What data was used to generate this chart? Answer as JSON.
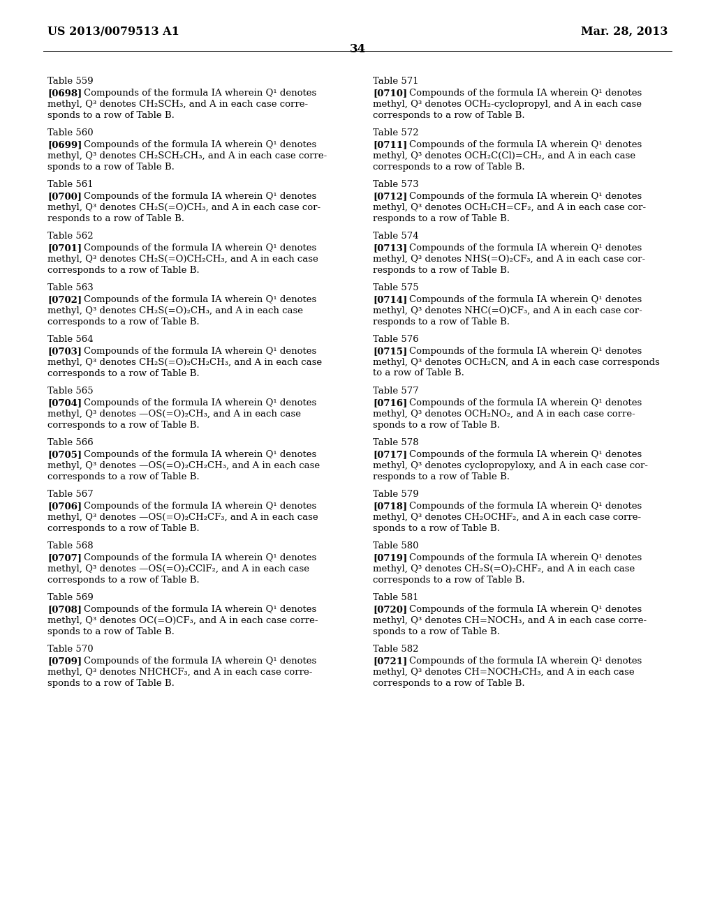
{
  "page_number": "34",
  "patent_number": "US 2013/0079513 A1",
  "date": "Mar. 28, 2013",
  "background_color": "#ffffff",
  "text_color": "#000000",
  "left_column": [
    {
      "table": "Table 559",
      "ref": "[0698]",
      "text": "Compounds of the formula IA wherein Q1 denotes methyl, Q3 denotes CH2SCH3, and A in each case corresponds to a row of Table B."
    },
    {
      "table": "Table 560",
      "ref": "[0699]",
      "text": "Compounds of the formula IA wherein Q1 denotes methyl, Q3 denotes CH2SCH2CH3, and A in each case corresponds to a row of Table B."
    },
    {
      "table": "Table 561",
      "ref": "[0700]",
      "text": "Compounds of the formula IA wherein Q1 denotes methyl, Q3 denotes CH2S(=O)CH3, and A in each case corresponds to a row of Table B."
    },
    {
      "table": "Table 562",
      "ref": "[0701]",
      "text": "Compounds of the formula IA wherein Q1 denotes methyl, Q3 denotes CH2S(=O)CH2CH3, and A in each case corresponds to a row of Table B."
    },
    {
      "table": "Table 563",
      "ref": "[0702]",
      "text": "Compounds of the formula IA wherein Q1 denotes methyl, Q3 denotes CH2S(=O)2CH3, and A in each case corresponds to a row of Table B."
    },
    {
      "table": "Table 564",
      "ref": "[0703]",
      "text": "Compounds of the formula IA wherein Q1 denotes methyl, Q3 denotes CH2S(=O)2CH2CH3, and A in each case corresponds to a row of Table B."
    },
    {
      "table": "Table 565",
      "ref": "[0704]",
      "text": "Compounds of the formula IA wherein Q1 denotes methyl, Q3 denotes —OS(=O)2CH3, and A in each case corresponds to a row of Table B."
    },
    {
      "table": "Table 566",
      "ref": "[0705]",
      "text": "Compounds of the formula IA wherein Q1 denotes methyl, Q3 denotes —OS(=O)2CH2CH3, and A in each case corresponds to a row of Table B."
    },
    {
      "table": "Table 567",
      "ref": "[0706]",
      "text": "Compounds of the formula IA wherein Q1 denotes methyl, Q3 denotes —OS(=O)2CH2CF3, and A in each case corresponds to a row of Table B."
    },
    {
      "table": "Table 568",
      "ref": "[0707]",
      "text": "Compounds of the formula IA wherein Q1 denotes methyl, Q3 denotes —OS(=O)2CClF2, and A in each case corresponds to a row of Table B."
    },
    {
      "table": "Table 569",
      "ref": "[0708]",
      "text": "Compounds of the formula IA wherein Q1 denotes methyl, Q3 denotes OC(=O)CF3, and A in each case corresponds to a row of Table B."
    },
    {
      "table": "Table 570",
      "ref": "[0709]",
      "text": "Compounds of the formula IA wherein Q1 denotes methyl, Q3 denotes NHCHCF3, and A in each case corresponds to a row of Table B."
    }
  ],
  "right_column": [
    {
      "table": "Table 571",
      "ref": "[0710]",
      "text": "Compounds of the formula IA wherein Q1 denotes methyl, Q3 denotes OCH2-cyclopropyl, and A in each case corresponds to a row of Table B."
    },
    {
      "table": "Table 572",
      "ref": "[0711]",
      "text": "Compounds of the formula IA wherein Q1 denotes methyl, Q3 denotes OCH2C(Cl)=CH2, and A in each case corresponds to a row of Table B."
    },
    {
      "table": "Table 573",
      "ref": "[0712]",
      "text": "Compounds of the formula IA wherein Q1 denotes methyl, Q3 denotes OCH2CH=CF2, and A in each case corresponds to a row of Table B."
    },
    {
      "table": "Table 574",
      "ref": "[0713]",
      "text": "Compounds of the formula IA wherein Q1 denotes methyl, Q3 denotes NHS(=O)2CF3, and A in each case corresponds to a row of Table B."
    },
    {
      "table": "Table 575",
      "ref": "[0714]",
      "text": "Compounds of the formula IA wherein Q1 denotes methyl, Q3 denotes NHC(=O)CF3, and A in each case corresponds to a row of Table B."
    },
    {
      "table": "Table 576",
      "ref": "[0715]",
      "text": "Compounds of the formula IA wherein Q1 denotes methyl, Q3 denotes OCH2CN, and A in each case corresponds to a row of Table B."
    },
    {
      "table": "Table 577",
      "ref": "[0716]",
      "text": "Compounds of the formula IA wherein Q1 denotes methyl, Q3 denotes OCH2NO2, and A in each case corresponds to a row of Table B."
    },
    {
      "table": "Table 578",
      "ref": "[0717]",
      "text": "Compounds of the formula IA wherein Q1 denotes methyl, Q3 denotes cyclopropyloxy, and A in each case corresponds to a row of Table B."
    },
    {
      "table": "Table 579",
      "ref": "[0718]",
      "text": "Compounds of the formula IA wherein Q1 denotes methyl, Q3 denotes CH2OCHF2, and A in each case corresponds to a row of Table B."
    },
    {
      "table": "Table 580",
      "ref": "[0719]",
      "text": "Compounds of the formula IA wherein Q1 denotes methyl, Q3 denotes CH2S(=O)2CHF2, and A in each case corresponds to a row of Table B."
    },
    {
      "table": "Table 581",
      "ref": "[0720]",
      "text": "Compounds of the formula IA wherein Q1 denotes methyl, Q3 denotes CH=NOCH3, and A in each case corresponds to a row of Table B."
    },
    {
      "table": "Table 582",
      "ref": "[0721]",
      "text": "Compounds of the formula IA wherein Q1 denotes methyl, Q3 denotes CH=NOCH2CH3, and A in each case corresponds to a row of Table B."
    }
  ],
  "left_column_display": [
    {
      "table": "Table 559",
      "ref": "[0698]",
      "lines": [
        "Compounds of the formula IA wherein Q¹ denotes",
        "methyl, Q³ denotes CH₂SCH₃, and A in each case corre-",
        "sponds to a row of Table B."
      ]
    },
    {
      "table": "Table 560",
      "ref": "[0699]",
      "lines": [
        "Compounds of the formula IA wherein Q¹ denotes",
        "methyl, Q³ denotes CH₂SCH₂CH₃, and A in each case corre-",
        "sponds to a row of Table B."
      ]
    },
    {
      "table": "Table 561",
      "ref": "[0700]",
      "lines": [
        "Compounds of the formula IA wherein Q¹ denotes",
        "methyl, Q³ denotes CH₂S(=O)CH₃, and A in each case cor-",
        "responds to a row of Table B."
      ]
    },
    {
      "table": "Table 562",
      "ref": "[0701]",
      "lines": [
        "Compounds of the formula IA wherein Q¹ denotes",
        "methyl, Q³ denotes CH₂S(=O)CH₂CH₃, and A in each case",
        "corresponds to a row of Table B."
      ]
    },
    {
      "table": "Table 563",
      "ref": "[0702]",
      "lines": [
        "Compounds of the formula IA wherein Q¹ denotes",
        "methyl, Q³ denotes CH₂S(=O)₂CH₃, and A in each case",
        "corresponds to a row of Table B."
      ]
    },
    {
      "table": "Table 564",
      "ref": "[0703]",
      "lines": [
        "Compounds of the formula IA wherein Q¹ denotes",
        "methyl, Q³ denotes CH₂S(=O)₂CH₂CH₃, and A in each case",
        "corresponds to a row of Table B."
      ]
    },
    {
      "table": "Table 565",
      "ref": "[0704]",
      "lines": [
        "Compounds of the formula IA wherein Q¹ denotes",
        "methyl, Q³ denotes —OS(=O)₂CH₃, and A in each case",
        "corresponds to a row of Table B."
      ]
    },
    {
      "table": "Table 566",
      "ref": "[0705]",
      "lines": [
        "Compounds of the formula IA wherein Q¹ denotes",
        "methyl, Q³ denotes —OS(=O)₂CH₂CH₃, and A in each case",
        "corresponds to a row of Table B."
      ]
    },
    {
      "table": "Table 567",
      "ref": "[0706]",
      "lines": [
        "Compounds of the formula IA wherein Q¹ denotes",
        "methyl, Q³ denotes —OS(=O)₂CH₂CF₃, and A in each case",
        "corresponds to a row of Table B."
      ]
    },
    {
      "table": "Table 568",
      "ref": "[0707]",
      "lines": [
        "Compounds of the formula IA wherein Q¹ denotes",
        "methyl, Q³ denotes —OS(=O)₂CClF₂, and A in each case",
        "corresponds to a row of Table B."
      ]
    },
    {
      "table": "Table 569",
      "ref": "[0708]",
      "lines": [
        "Compounds of the formula IA wherein Q¹ denotes",
        "methyl, Q³ denotes OC(=O)CF₃, and A in each case corre-",
        "sponds to a row of Table B."
      ]
    },
    {
      "table": "Table 570",
      "ref": "[0709]",
      "lines": [
        "Compounds of the formula IA wherein Q¹ denotes",
        "methyl, Q³ denotes NHCHCF₃, and A in each case corre-",
        "sponds to a row of Table B."
      ]
    }
  ],
  "right_column_display": [
    {
      "table": "Table 571",
      "ref": "[0710]",
      "lines": [
        "Compounds of the formula IA wherein Q¹ denotes",
        "methyl, Q³ denotes OCH₂-cyclopropyl, and A in each case",
        "corresponds to a row of Table B."
      ]
    },
    {
      "table": "Table 572",
      "ref": "[0711]",
      "lines": [
        "Compounds of the formula IA wherein Q¹ denotes",
        "methyl, Q³ denotes OCH₂C(Cl)=CH₂, and A in each case",
        "corresponds to a row of Table B."
      ]
    },
    {
      "table": "Table 573",
      "ref": "[0712]",
      "lines": [
        "Compounds of the formula IA wherein Q¹ denotes",
        "methyl, Q³ denotes OCH₂CH=CF₂, and A in each case cor-",
        "responds to a row of Table B."
      ]
    },
    {
      "table": "Table 574",
      "ref": "[0713]",
      "lines": [
        "Compounds of the formula IA wherein Q¹ denotes",
        "methyl, Q³ denotes NHS(=O)₂CF₃, and A in each case cor-",
        "responds to a row of Table B."
      ]
    },
    {
      "table": "Table 575",
      "ref": "[0714]",
      "lines": [
        "Compounds of the formula IA wherein Q¹ denotes",
        "methyl, Q³ denotes NHC(=O)CF₃, and A in each case cor-",
        "responds to a row of Table B."
      ]
    },
    {
      "table": "Table 576",
      "ref": "[0715]",
      "lines": [
        "Compounds of the formula IA wherein Q¹ denotes",
        "methyl, Q³ denotes OCH₂CN, and A in each case corresponds",
        "to a row of Table B."
      ]
    },
    {
      "table": "Table 577",
      "ref": "[0716]",
      "lines": [
        "Compounds of the formula IA wherein Q¹ denotes",
        "methyl, Q³ denotes OCH₂NO₂, and A in each case corre-",
        "sponds to a row of Table B."
      ]
    },
    {
      "table": "Table 578",
      "ref": "[0717]",
      "lines": [
        "Compounds of the formula IA wherein Q¹ denotes",
        "methyl, Q³ denotes cyclopropyloxy, and A in each case cor-",
        "responds to a row of Table B."
      ]
    },
    {
      "table": "Table 579",
      "ref": "[0718]",
      "lines": [
        "Compounds of the formula IA wherein Q¹ denotes",
        "methyl, Q³ denotes CH₂OCHF₂, and A in each case corre-",
        "sponds to a row of Table B."
      ]
    },
    {
      "table": "Table 580",
      "ref": "[0719]",
      "lines": [
        "Compounds of the formula IA wherein Q¹ denotes",
        "methyl, Q³ denotes CH₂S(=O)₂CHF₂, and A in each case",
        "corresponds to a row of Table B."
      ]
    },
    {
      "table": "Table 581",
      "ref": "[0720]",
      "lines": [
        "Compounds of the formula IA wherein Q¹ denotes",
        "methyl, Q³ denotes CH=NOCH₃, and A in each case corre-",
        "sponds to a row of Table B."
      ]
    },
    {
      "table": "Table 582",
      "ref": "[0721]",
      "lines": [
        "Compounds of the formula IA wherein Q¹ denotes",
        "methyl, Q³ denotes CH=NOCH₂CH₃, and A in each case",
        "corresponds to a row of Table B."
      ]
    }
  ]
}
